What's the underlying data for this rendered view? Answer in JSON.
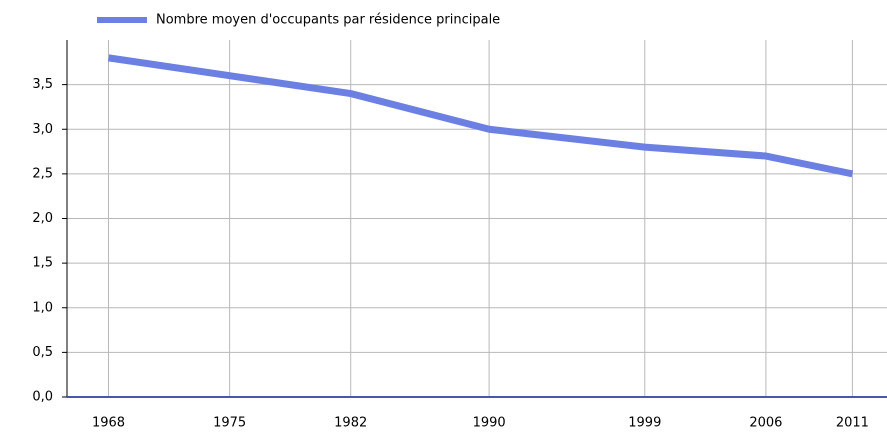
{
  "chart_data": {
    "type": "line",
    "x": [
      1968,
      1975,
      1982,
      1990,
      1999,
      2006,
      2011
    ],
    "series": [
      {
        "name": "Nombre moyen d'occupants par résidence principale",
        "color": "#6b80e2",
        "values": [
          3.8,
          3.6,
          3.4,
          3.0,
          2.8,
          2.7,
          2.5
        ]
      }
    ],
    "xlim": [
      1965.6,
      2013
    ],
    "xticks": [
      1968,
      1975,
      1982,
      1990,
      1999,
      2006,
      2011
    ],
    "ylim": [
      0,
      4
    ],
    "yticks": [
      {
        "value": 0,
        "label": "0,0"
      },
      {
        "value": 0.5,
        "label": "0,5"
      },
      {
        "value": 1,
        "label": "1,0"
      },
      {
        "value": 1.5,
        "label": "1,5"
      },
      {
        "value": 2,
        "label": "2,0"
      },
      {
        "value": 2.5,
        "label": "2,5"
      },
      {
        "value": 3,
        "label": "3,0"
      },
      {
        "value": 3.5,
        "label": "3,5"
      }
    ],
    "grid": true,
    "legend": "top"
  }
}
